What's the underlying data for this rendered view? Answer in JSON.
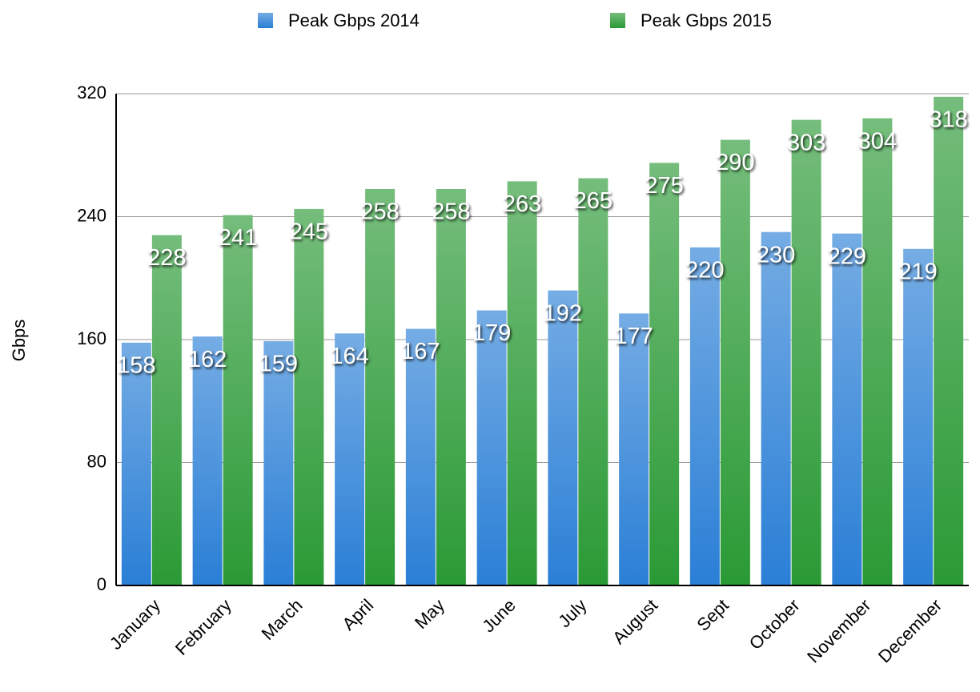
{
  "chart_data": {
    "type": "bar",
    "y_label": "Gbps",
    "categories": [
      "January",
      "February",
      "March",
      "April",
      "May",
      "June",
      "July",
      "August",
      "Sept",
      "October",
      "November",
      "December"
    ],
    "series": [
      {
        "name": "Peak Gbps 2014",
        "color": "#2a7fd6",
        "values": [
          158,
          162,
          159,
          164,
          167,
          179,
          192,
          177,
          220,
          230,
          229,
          219
        ]
      },
      {
        "name": "Peak Gbps 2015",
        "color": "#2a9a35",
        "values": [
          228,
          241,
          245,
          258,
          258,
          263,
          265,
          275,
          290,
          303,
          304,
          318
        ]
      }
    ],
    "ylim": [
      0,
      320
    ],
    "yticks": [
      0,
      80,
      160,
      240,
      320
    ],
    "grid": true,
    "legend": "top"
  }
}
